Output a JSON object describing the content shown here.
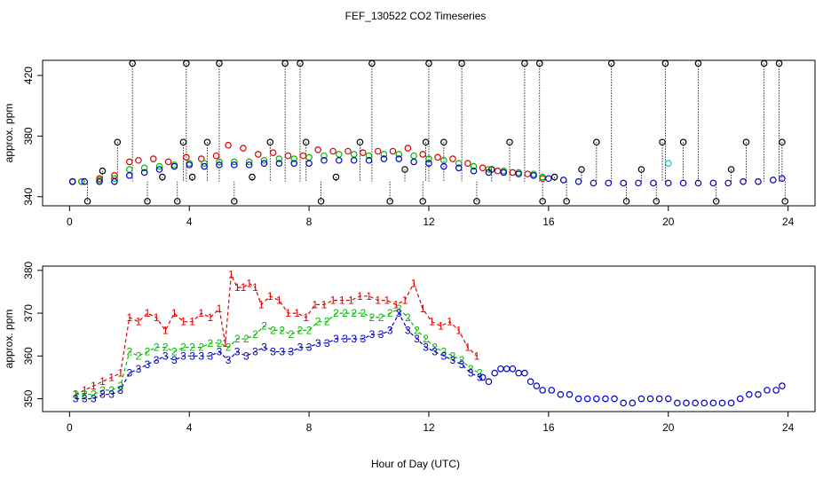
{
  "title": "FEF_130522  CO2 Timeseries",
  "xlabel": "Hour of Day (UTC)",
  "colors": {
    "black": "#000000",
    "red": "#dd0000",
    "green": "#00bb00",
    "blue": "#0000cc",
    "cyan": "#00cccc"
  },
  "chart_data": [
    {
      "type": "scatter",
      "ylabel": "approx. ppm",
      "xlim": [
        -0.9,
        24.9
      ],
      "ylim": [
        334,
        430
      ],
      "xticks": [
        0,
        4,
        8,
        12,
        16,
        20,
        24
      ],
      "yticks": [
        340,
        380,
        420
      ],
      "grid": false,
      "series": [
        {
          "marker": "circle",
          "color": "#000000",
          "description_markers": "spikes",
          "x": [
            0.1,
            0.6,
            1.1,
            1.6,
            2.1,
            2.6,
            3.1,
            3.6,
            3.8,
            3.9,
            4.1,
            4.6,
            5.0,
            5.5,
            6.1,
            6.7,
            7.2,
            7.7,
            7.9,
            8.4,
            8.9,
            9.7,
            10.1,
            10.7,
            11.2,
            11.8,
            11.9,
            12.0,
            12.5,
            13.1,
            13.6,
            14.1,
            14.7,
            15.2,
            15.7,
            15.8,
            16.2,
            16.6,
            17.1,
            17.6,
            18.1,
            18.6,
            19.1,
            19.6,
            19.8,
            19.9,
            20.5,
            21.0,
            21.6,
            22.1,
            22.6,
            23.2,
            23.7,
            23.8,
            23.9
          ],
          "y": [
            350,
            337,
            357,
            376,
            428,
            337,
            353,
            337,
            376,
            428,
            353,
            376,
            428,
            337,
            353,
            376,
            428,
            428,
            376,
            337,
            353,
            376,
            428,
            337,
            358,
            337,
            376,
            428,
            376,
            428,
            337,
            358,
            376,
            428,
            428,
            337,
            353,
            337,
            358,
            376,
            428,
            337,
            358,
            337,
            376,
            428,
            376,
            428,
            337,
            358,
            376,
            428,
            428,
            376,
            337
          ]
        },
        {
          "marker": "circle",
          "color": "#dd0000",
          "x": [
            0.4,
            1.0,
            1.5,
            2.0,
            2.3,
            2.8,
            3.3,
            3.9,
            4.4,
            4.9,
            5.3,
            5.8,
            6.3,
            6.8,
            7.3,
            7.8,
            8.3,
            8.8,
            9.3,
            9.8,
            10.3,
            10.8,
            11.3,
            11.8,
            12.3,
            12.8,
            13.3,
            13.8,
            14.3,
            14.8,
            15.3,
            15.8
          ],
          "y": [
            350,
            352,
            354,
            363,
            364,
            365,
            363,
            366,
            365,
            367,
            374,
            372,
            368,
            369,
            367,
            367,
            371,
            370,
            370,
            369,
            370,
            370,
            372,
            368,
            366,
            365,
            362,
            359,
            357,
            356,
            355,
            352
          ]
        },
        {
          "marker": "circle",
          "color": "#00bb00",
          "x": [
            0.4,
            1.0,
            1.5,
            2.0,
            2.5,
            3.0,
            3.5,
            4.0,
            4.5,
            5.0,
            5.5,
            6.0,
            6.5,
            7.0,
            7.5,
            8.0,
            8.5,
            9.0,
            9.5,
            10.0,
            10.5,
            11.0,
            11.5,
            12.0,
            12.5,
            13.0,
            13.5,
            14.0,
            14.5,
            15.0,
            15.5,
            15.8
          ],
          "y": [
            350,
            351,
            352,
            358,
            359,
            360,
            361,
            362,
            362,
            363,
            363,
            363,
            364,
            365,
            365,
            366,
            367,
            368,
            368,
            367,
            368,
            368,
            367,
            365,
            364,
            362,
            360,
            358,
            357,
            356,
            355,
            353
          ]
        },
        {
          "marker": "circle",
          "color": "#0000cc",
          "x": [
            0.1,
            0.5,
            1.0,
            1.5,
            2.0,
            2.5,
            3.0,
            3.5,
            4.0,
            4.5,
            5.0,
            5.5,
            6.0,
            6.5,
            7.0,
            7.5,
            8.0,
            8.5,
            9.0,
            9.5,
            10.0,
            10.5,
            11.0,
            11.5,
            12.0,
            12.5,
            13.0,
            13.5,
            14.0,
            14.5,
            15.0,
            15.5,
            16.0,
            16.5,
            17.0,
            17.5,
            18.0,
            18.5,
            19.0,
            19.5,
            20.0,
            20.5,
            21.0,
            21.5,
            22.0,
            22.5,
            23.0,
            23.5,
            23.8
          ],
          "y": [
            350,
            350,
            350,
            350,
            354,
            356,
            358,
            360,
            361,
            360,
            361,
            361,
            361,
            362,
            362,
            362,
            362,
            364,
            364,
            364,
            364,
            365,
            365,
            363,
            362,
            360,
            359,
            357,
            356,
            356,
            355,
            354,
            352,
            351,
            350,
            349,
            349,
            349,
            349,
            349,
            349,
            349,
            349,
            349,
            349,
            350,
            350,
            351,
            352
          ]
        },
        {
          "marker": "circle",
          "color": "#00cccc",
          "x": [
            20.0
          ],
          "y": [
            362
          ]
        }
      ]
    },
    {
      "type": "line",
      "ylabel": "approx. ppm",
      "xlim": [
        -0.9,
        24.9
      ],
      "ylim": [
        347,
        381
      ],
      "xticks": [
        0,
        4,
        8,
        12,
        16,
        20,
        24
      ],
      "yticks": [
        350,
        360,
        370,
        380
      ],
      "grid": false,
      "series": [
        {
          "marker": "1",
          "color": "#dd0000",
          "x": [
            0.2,
            0.5,
            0.8,
            1.1,
            1.4,
            1.7,
            2.0,
            2.3,
            2.6,
            2.9,
            3.2,
            3.5,
            3.8,
            4.1,
            4.4,
            4.7,
            5.0,
            5.2,
            5.4,
            5.6,
            5.8,
            6.0,
            6.2,
            6.4,
            6.7,
            7.0,
            7.3,
            7.6,
            7.9,
            8.2,
            8.5,
            8.8,
            9.1,
            9.4,
            9.7,
            10.0,
            10.3,
            10.6,
            10.9,
            11.2,
            11.5,
            11.8,
            12.1,
            12.4,
            12.7,
            13.0,
            13.3,
            13.6
          ],
          "y": [
            351,
            352,
            353,
            354,
            355,
            356,
            369,
            368,
            370,
            369,
            366,
            370,
            368,
            368,
            370,
            369,
            371,
            363,
            379,
            376,
            376,
            377,
            376,
            372,
            374,
            373,
            370,
            370,
            369,
            372,
            372,
            373,
            373,
            373,
            374,
            374,
            373,
            373,
            372,
            373,
            377,
            371,
            368,
            367,
            368,
            366,
            362,
            360
          ]
        },
        {
          "marker": "2",
          "color": "#00bb00",
          "x": [
            0.2,
            0.5,
            0.8,
            1.1,
            1.4,
            1.7,
            2.0,
            2.3,
            2.6,
            2.9,
            3.2,
            3.5,
            3.8,
            4.1,
            4.4,
            4.7,
            5.0,
            5.3,
            5.6,
            5.9,
            6.2,
            6.5,
            6.8,
            7.1,
            7.4,
            7.7,
            8.0,
            8.3,
            8.6,
            8.9,
            9.2,
            9.5,
            9.8,
            10.1,
            10.4,
            10.7,
            11.0,
            11.3,
            11.6,
            11.9,
            12.2,
            12.5,
            12.8,
            13.1,
            13.4,
            13.7
          ],
          "y": [
            351,
            351,
            351,
            352,
            352,
            353,
            361,
            360,
            361,
            362,
            362,
            361,
            362,
            362,
            362,
            363,
            363,
            362,
            364,
            364,
            365,
            367,
            366,
            366,
            365,
            366,
            366,
            368,
            368,
            370,
            370,
            370,
            370,
            369,
            369,
            370,
            371,
            369,
            366,
            364,
            362,
            361,
            360,
            359,
            357,
            356
          ]
        },
        {
          "marker": "3",
          "color": "#0000cc",
          "x": [
            0.2,
            0.5,
            0.8,
            1.1,
            1.4,
            1.7,
            2.0,
            2.3,
            2.6,
            2.9,
            3.2,
            3.5,
            3.8,
            4.1,
            4.4,
            4.7,
            5.0,
            5.3,
            5.6,
            5.9,
            6.2,
            6.5,
            6.8,
            7.1,
            7.4,
            7.7,
            8.0,
            8.3,
            8.6,
            8.9,
            9.2,
            9.5,
            9.8,
            10.1,
            10.4,
            10.7,
            11.0,
            11.3,
            11.6,
            11.9,
            12.2,
            12.5,
            12.8,
            13.1,
            13.4,
            13.7
          ],
          "y": [
            350,
            350,
            350,
            351,
            351,
            352,
            356,
            357,
            358,
            359,
            360,
            359,
            360,
            360,
            360,
            360,
            361,
            359,
            361,
            360,
            361,
            362,
            361,
            361,
            361,
            362,
            362,
            363,
            363,
            364,
            364,
            364,
            364,
            365,
            365,
            366,
            370,
            366,
            364,
            362,
            361,
            360,
            359,
            358,
            356,
            355
          ]
        },
        {
          "marker": "circle",
          "color": "#0000cc",
          "x": [
            13.8,
            14.0,
            14.2,
            14.4,
            14.6,
            14.8,
            15.0,
            15.2,
            15.4,
            15.6,
            15.8,
            16.1,
            16.4,
            16.7,
            17.0,
            17.3,
            17.6,
            17.9,
            18.2,
            18.5,
            18.8,
            19.1,
            19.4,
            19.7,
            20.0,
            20.3,
            20.6,
            20.9,
            21.2,
            21.5,
            21.8,
            22.1,
            22.4,
            22.7,
            23.0,
            23.3,
            23.6,
            23.8
          ],
          "y": [
            355,
            354,
            356,
            357,
            357,
            357,
            356,
            356,
            354,
            353,
            352,
            352,
            351,
            351,
            350,
            350,
            350,
            350,
            350,
            349,
            349,
            350,
            350,
            350,
            350,
            349,
            349,
            349,
            349,
            349,
            349,
            349,
            350,
            351,
            351,
            352,
            352,
            353
          ]
        }
      ]
    }
  ]
}
